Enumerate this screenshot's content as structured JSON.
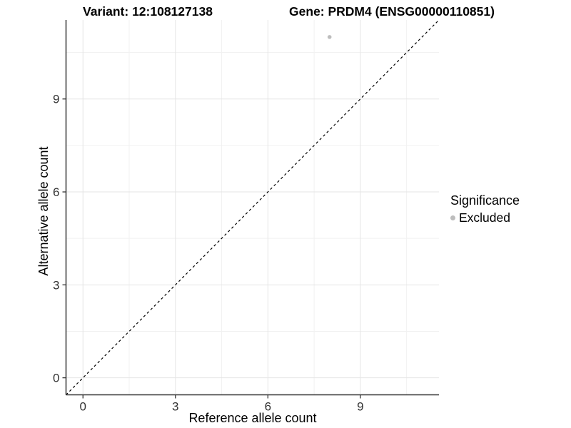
{
  "chart_data": {
    "type": "scatter",
    "title_left": "Variant: 12:108127138",
    "title_right": "Gene: PRDM4 (ENSG00000110851)",
    "xlabel": "Reference allele count",
    "ylabel": "Alternative allele count",
    "xlim": [
      -0.55,
      11.55
    ],
    "ylim": [
      -0.55,
      11.55
    ],
    "x_ticks": [
      0,
      3,
      6,
      9
    ],
    "y_ticks": [
      0,
      3,
      6,
      9
    ],
    "x_minor_ticks": [
      1.5,
      4.5,
      7.5,
      10.5
    ],
    "y_minor_ticks": [
      1.5,
      4.5,
      7.5,
      10.5
    ],
    "grid": true,
    "points": [
      {
        "x": 8,
        "y": 11,
        "series": "Excluded"
      }
    ],
    "identity_line": {
      "from": [
        -0.55,
        -0.55
      ],
      "to": [
        11.55,
        11.55
      ],
      "style": "dashed"
    },
    "legend": {
      "title": "Significance",
      "position": "right",
      "items": [
        {
          "label": "Excluded",
          "color": "#bdbdbd"
        }
      ]
    }
  },
  "colors": {
    "point": "#bdbdbd",
    "grid_major": "#e5e5e5",
    "grid_minor": "#f1f1f1",
    "axis_line": "#333333",
    "tick_mark": "#333333",
    "tick_label": "#333333",
    "identity_line": "#000000",
    "background": "#ffffff"
  }
}
